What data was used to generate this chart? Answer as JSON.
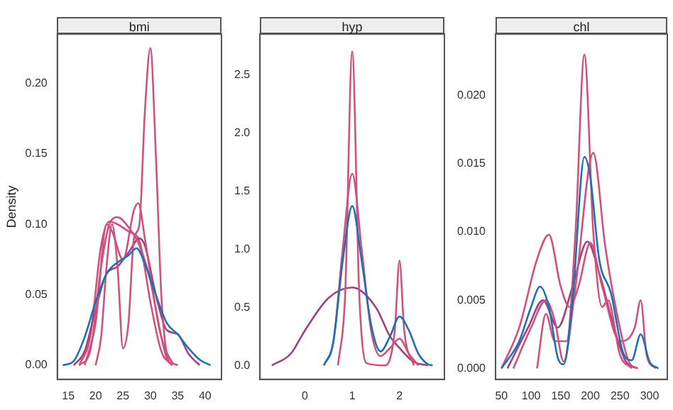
{
  "chart_data": [
    {
      "type": "line",
      "title": "bmi",
      "ylabel": "Density",
      "xlim": [
        13,
        43
      ],
      "ylim": [
        -0.01,
        0.235
      ],
      "xticks": [
        15,
        20,
        25,
        30,
        35,
        40
      ],
      "yticks": [
        {
          "value": 0,
          "label": "0.00"
        },
        {
          "value": 0.05,
          "label": "0.05"
        },
        {
          "value": 0.1,
          "label": "0.10"
        },
        {
          "value": 0.15,
          "label": "0.15"
        },
        {
          "value": 0.2,
          "label": "0.20"
        }
      ],
      "grid": false,
      "series": [
        {
          "color": "#1f6fb4",
          "x": [
            14,
            16,
            18,
            20,
            22,
            24,
            26,
            27.5,
            29,
            31,
            33,
            35,
            37,
            39,
            41
          ],
          "values": [
            0,
            0.003,
            0.02,
            0.045,
            0.065,
            0.073,
            0.078,
            0.083,
            0.072,
            0.05,
            0.03,
            0.022,
            0.012,
            0.004,
            0
          ]
        },
        {
          "color": "#d0507e",
          "x": [
            20,
            21,
            22,
            23,
            24,
            25,
            26,
            27,
            28,
            29,
            30,
            31,
            32,
            33,
            34
          ],
          "values": [
            0,
            0.02,
            0.07,
            0.1,
            0.07,
            0.012,
            0.03,
            0.09,
            0.1,
            0.18,
            0.225,
            0.15,
            0.05,
            0.008,
            0
          ]
        },
        {
          "color": "#d0507e",
          "x": [
            17,
            19,
            21,
            22.5,
            24,
            26,
            28,
            30,
            32,
            34,
            35
          ],
          "values": [
            0,
            0.01,
            0.07,
            0.1,
            0.105,
            0.098,
            0.085,
            0.06,
            0.02,
            0.002,
            0
          ]
        },
        {
          "color": "#d0507e",
          "x": [
            18,
            20,
            22,
            23,
            25,
            27,
            27.8,
            29,
            31,
            33,
            34
          ],
          "values": [
            0,
            0.03,
            0.1,
            0.095,
            0.075,
            0.11,
            0.115,
            0.09,
            0.04,
            0.005,
            0
          ]
        },
        {
          "color": "#a0407e",
          "x": [
            16,
            18,
            20,
            22,
            24,
            26,
            28,
            29,
            31,
            33,
            35,
            37,
            39
          ],
          "values": [
            0,
            0.01,
            0.04,
            0.065,
            0.07,
            0.08,
            0.09,
            0.085,
            0.05,
            0.025,
            0.022,
            0.008,
            0
          ]
        },
        {
          "color": "#d0507e",
          "x": [
            17,
            19,
            21,
            22.5,
            24,
            26,
            28,
            30,
            32,
            34
          ],
          "values": [
            0,
            0.02,
            0.085,
            0.102,
            0.1,
            0.095,
            0.088,
            0.045,
            0.01,
            0
          ]
        }
      ]
    },
    {
      "type": "line",
      "title": "hyp",
      "xlim": [
        -0.95,
        2.95
      ],
      "ylim": [
        -0.12,
        2.85
      ],
      "xticks": [
        0,
        1,
        2
      ],
      "yticks": [
        {
          "value": 0,
          "label": "0.0"
        },
        {
          "value": 0.5,
          "label": "0.5"
        },
        {
          "value": 1,
          "label": "1.0"
        },
        {
          "value": 1.5,
          "label": "1.5"
        },
        {
          "value": 2,
          "label": "2.0"
        },
        {
          "value": 2.5,
          "label": "2.5"
        }
      ],
      "grid": false,
      "series": [
        {
          "color": "#1f6fb4",
          "x": [
            0.4,
            0.6,
            0.8,
            1,
            1.2,
            1.4,
            1.6,
            1.8,
            2,
            2.2,
            2.4,
            2.6,
            2.7
          ],
          "values": [
            0,
            0.2,
            0.9,
            1.37,
            0.9,
            0.35,
            0.12,
            0.25,
            0.42,
            0.3,
            0.1,
            0.01,
            0
          ]
        },
        {
          "color": "#d0507e",
          "x": [
            0.7,
            0.85,
            1,
            1.15,
            1.3,
            1.7,
            1.9,
            2,
            2.1,
            2.3
          ],
          "values": [
            0,
            0.6,
            2.7,
            0.6,
            0.02,
            0,
            0.3,
            0.9,
            0.3,
            0
          ]
        },
        {
          "color": "#d0507e",
          "x": [
            0.4,
            0.6,
            0.8,
            1,
            1.2,
            1.4,
            1.6,
            1.8,
            2,
            2.2,
            2.4
          ],
          "values": [
            0,
            0.2,
            1,
            1.65,
            1,
            0.3,
            0.08,
            0.15,
            0.23,
            0.1,
            0
          ]
        },
        {
          "color": "#a0407e",
          "x": [
            -0.7,
            -0.3,
            0,
            0.5,
            1,
            1.5,
            1.8,
            2,
            2.3,
            2.6
          ],
          "values": [
            0,
            0.1,
            0.3,
            0.58,
            0.67,
            0.5,
            0.25,
            0.15,
            0.03,
            0
          ]
        }
      ]
    },
    {
      "type": "line",
      "title": "chl",
      "xlim": [
        40,
        330
      ],
      "ylim": [
        -0.0008,
        0.0245
      ],
      "xticks": [
        50,
        100,
        150,
        200,
        250,
        300
      ],
      "yticks": [
        {
          "value": 0,
          "label": "0.000"
        },
        {
          "value": 0.005,
          "label": "0.005"
        },
        {
          "value": 0.01,
          "label": "0.010"
        },
        {
          "value": 0.015,
          "label": "0.015"
        },
        {
          "value": 0.02,
          "label": "0.020"
        }
      ],
      "grid": false,
      "series": [
        {
          "color": "#1f6fb4",
          "x": [
            50,
            80,
            100,
            115,
            130,
            145,
            155,
            170,
            190,
            200,
            215,
            235,
            255,
            270,
            285,
            300,
            315
          ],
          "values": [
            0,
            0.002,
            0.0045,
            0.006,
            0.0045,
            0.0008,
            0.0003,
            0.005,
            0.0155,
            0.014,
            0.008,
            0.0055,
            0.0012,
            0.0006,
            0.0025,
            0.0005,
            0
          ]
        },
        {
          "color": "#d0507e",
          "x": [
            110,
            125,
            140,
            160,
            175,
            190,
            205,
            220,
            230,
            250,
            270
          ],
          "values": [
            0,
            0.004,
            0.002,
            0.002,
            0.01,
            0.023,
            0.01,
            0.0045,
            0.005,
            0.001,
            0
          ]
        },
        {
          "color": "#d0507e",
          "x": [
            50,
            80,
            110,
            130,
            150,
            165,
            180,
            200,
            220,
            250,
            275,
            285,
            295,
            310
          ],
          "values": [
            0,
            0.003,
            0.008,
            0.0098,
            0.006,
            0.0045,
            0.006,
            0.0092,
            0.006,
            0.002,
            0.003,
            0.005,
            0.001,
            0
          ]
        },
        {
          "color": "#d0507e",
          "x": [
            70,
            100,
            125,
            140,
            155,
            175,
            205,
            225,
            245,
            265,
            280
          ],
          "values": [
            0,
            0.003,
            0.005,
            0.0035,
            0.0005,
            0.006,
            0.0158,
            0.009,
            0.004,
            0.0005,
            0
          ]
        },
        {
          "color": "#a0407e",
          "x": [
            60,
            95,
            120,
            145,
            170,
            195,
            215,
            240,
            260,
            280
          ],
          "values": [
            0,
            0.003,
            0.005,
            0.003,
            0.006,
            0.0093,
            0.007,
            0.003,
            0.0005,
            0
          ]
        }
      ]
    }
  ]
}
